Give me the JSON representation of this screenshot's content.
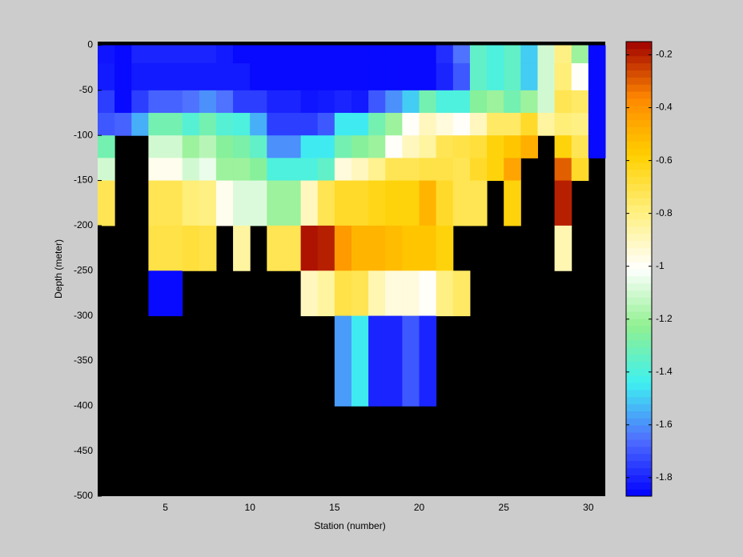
{
  "chart_data": {
    "type": "heatmap",
    "xlabel": "Station (number)",
    "ylabel": "Depth (meter)",
    "x": [
      1,
      2,
      3,
      4,
      5,
      6,
      7,
      8,
      9,
      10,
      11,
      12,
      13,
      14,
      15,
      16,
      17,
      18,
      19,
      20,
      21,
      22,
      23,
      24,
      25,
      26,
      27,
      28,
      29,
      30
    ],
    "y": [
      0,
      -20,
      -50,
      -75,
      -100,
      -125,
      -150,
      -200,
      -250,
      -300,
      -400
    ],
    "z": [
      [
        -1.83,
        -1.82,
        -1.75,
        -1.7,
        -1.3,
        -1.1,
        -0.72,
        null,
        null,
        null
      ],
      [
        -1.85,
        -1.85,
        -1.85,
        -1.68,
        null,
        null,
        null,
        null,
        null,
        null
      ],
      [
        -1.8,
        -1.82,
        -1.75,
        -1.55,
        null,
        null,
        null,
        null,
        null,
        null
      ],
      [
        -1.8,
        -1.82,
        -1.68,
        -1.3,
        -1.1,
        -0.98,
        -0.72,
        -0.7,
        -1.85,
        null
      ],
      [
        -1.8,
        -1.82,
        -1.68,
        -1.3,
        -1.1,
        -0.98,
        -0.72,
        -0.7,
        -1.85,
        null
      ],
      [
        -1.8,
        -1.82,
        -1.65,
        -1.38,
        -1.2,
        -1.1,
        -0.78,
        -0.68,
        null,
        null
      ],
      [
        -1.8,
        -1.82,
        -1.6,
        -1.3,
        -1.15,
        -1.05,
        -0.8,
        -0.7,
        null,
        null
      ],
      [
        -1.82,
        -1.82,
        -1.65,
        -1.38,
        -1.25,
        -1.2,
        -0.98,
        null,
        null,
        null
      ],
      [
        -1.85,
        -1.82,
        -1.75,
        -1.4,
        -1.28,
        -1.2,
        -1.08,
        -0.85,
        null,
        null
      ],
      [
        -1.85,
        -1.85,
        -1.75,
        -1.55,
        -1.35,
        -1.25,
        -1.08,
        null,
        null,
        null
      ],
      [
        -1.85,
        -1.85,
        -1.8,
        -1.75,
        -1.6,
        -1.4,
        -1.2,
        -0.72,
        null,
        null
      ],
      [
        -1.85,
        -1.85,
        -1.8,
        -1.75,
        -1.6,
        -1.4,
        -1.2,
        -0.72,
        null,
        null
      ],
      [
        -1.85,
        -1.85,
        -1.83,
        -1.75,
        -1.45,
        -1.4,
        -0.9,
        -0.18,
        -0.9,
        null
      ],
      [
        -1.85,
        -1.85,
        -1.82,
        -1.7,
        -1.45,
        -1.35,
        -0.72,
        -0.2,
        -0.85,
        null
      ],
      [
        -1.85,
        -1.85,
        -1.8,
        -1.45,
        -1.3,
        -0.95,
        -0.65,
        -0.42,
        -0.7,
        -1.58
      ],
      [
        -1.85,
        -1.85,
        -1.82,
        -1.45,
        -1.25,
        -0.9,
        -0.65,
        -0.5,
        -0.72,
        -1.45
      ],
      [
        -1.85,
        -1.85,
        -1.7,
        -1.3,
        -1.2,
        -0.82,
        -0.62,
        -0.5,
        -0.88,
        -1.8
      ],
      [
        -1.85,
        -1.85,
        -1.6,
        -1.2,
        -1.0,
        -0.72,
        -0.6,
        -0.52,
        -0.95,
        -1.8
      ],
      [
        -1.85,
        -1.85,
        -1.5,
        -1.0,
        -0.9,
        -0.72,
        -0.6,
        -0.55,
        -0.95,
        -1.7
      ],
      [
        -1.85,
        -1.85,
        -1.3,
        -0.9,
        -0.85,
        -0.7,
        -0.5,
        -0.55,
        -1.0,
        -1.8
      ],
      [
        -1.78,
        -1.8,
        -1.4,
        -0.95,
        -0.72,
        -0.7,
        -0.65,
        -0.6,
        -0.8,
        null
      ],
      [
        -1.65,
        -1.7,
        -1.4,
        -1.0,
        -0.7,
        -0.72,
        -0.72,
        null,
        -0.75,
        null
      ],
      [
        -1.35,
        -1.35,
        -1.25,
        -0.9,
        -0.68,
        -0.65,
        -0.72,
        null,
        null,
        null
      ],
      [
        -1.4,
        -1.4,
        -1.2,
        -0.75,
        -0.6,
        -0.6,
        null,
        null,
        null,
        null
      ],
      [
        -1.35,
        -1.35,
        -1.3,
        -0.75,
        -0.55,
        -0.45,
        -0.6,
        null,
        null,
        null
      ],
      [
        -1.5,
        -1.5,
        -1.2,
        -0.65,
        -0.48,
        null,
        null,
        null,
        null,
        null
      ],
      [
        -1.1,
        -1.1,
        -1.1,
        -0.85,
        null,
        null,
        null,
        null,
        null,
        null
      ],
      [
        -0.8,
        -0.78,
        -0.72,
        -0.78,
        -0.6,
        -0.3,
        -0.2,
        -0.88,
        null,
        null
      ],
      [
        -1.2,
        -1.0,
        -0.75,
        -0.8,
        -0.72,
        -0.65,
        null,
        null,
        null,
        null
      ],
      [
        -1.85,
        -1.85,
        -1.85,
        -1.85,
        -1.85,
        null,
        null,
        null,
        null,
        null
      ]
    ],
    "xlim": [
      1,
      31
    ],
    "ylim": [
      -500,
      4
    ],
    "xticks": [
      5,
      10,
      15,
      20,
      25,
      30
    ],
    "yticks": [
      0,
      -50,
      -100,
      -150,
      -200,
      -250,
      -300,
      -350,
      -400,
      -450,
      -500
    ],
    "clim": [
      -1.87,
      -0.15
    ],
    "cticks": [
      -1.8,
      -1.6,
      -1.4,
      -1.2,
      -1,
      -0.8,
      -0.6,
      -0.4,
      -0.2
    ],
    "colormap": [
      "#0000ff",
      "#4f6fff",
      "#3ff0f0",
      "#90f090",
      "#ffffff",
      "#fff080",
      "#ffd000",
      "#ff8800",
      "#a00000"
    ],
    "missing_color": "#000000"
  }
}
